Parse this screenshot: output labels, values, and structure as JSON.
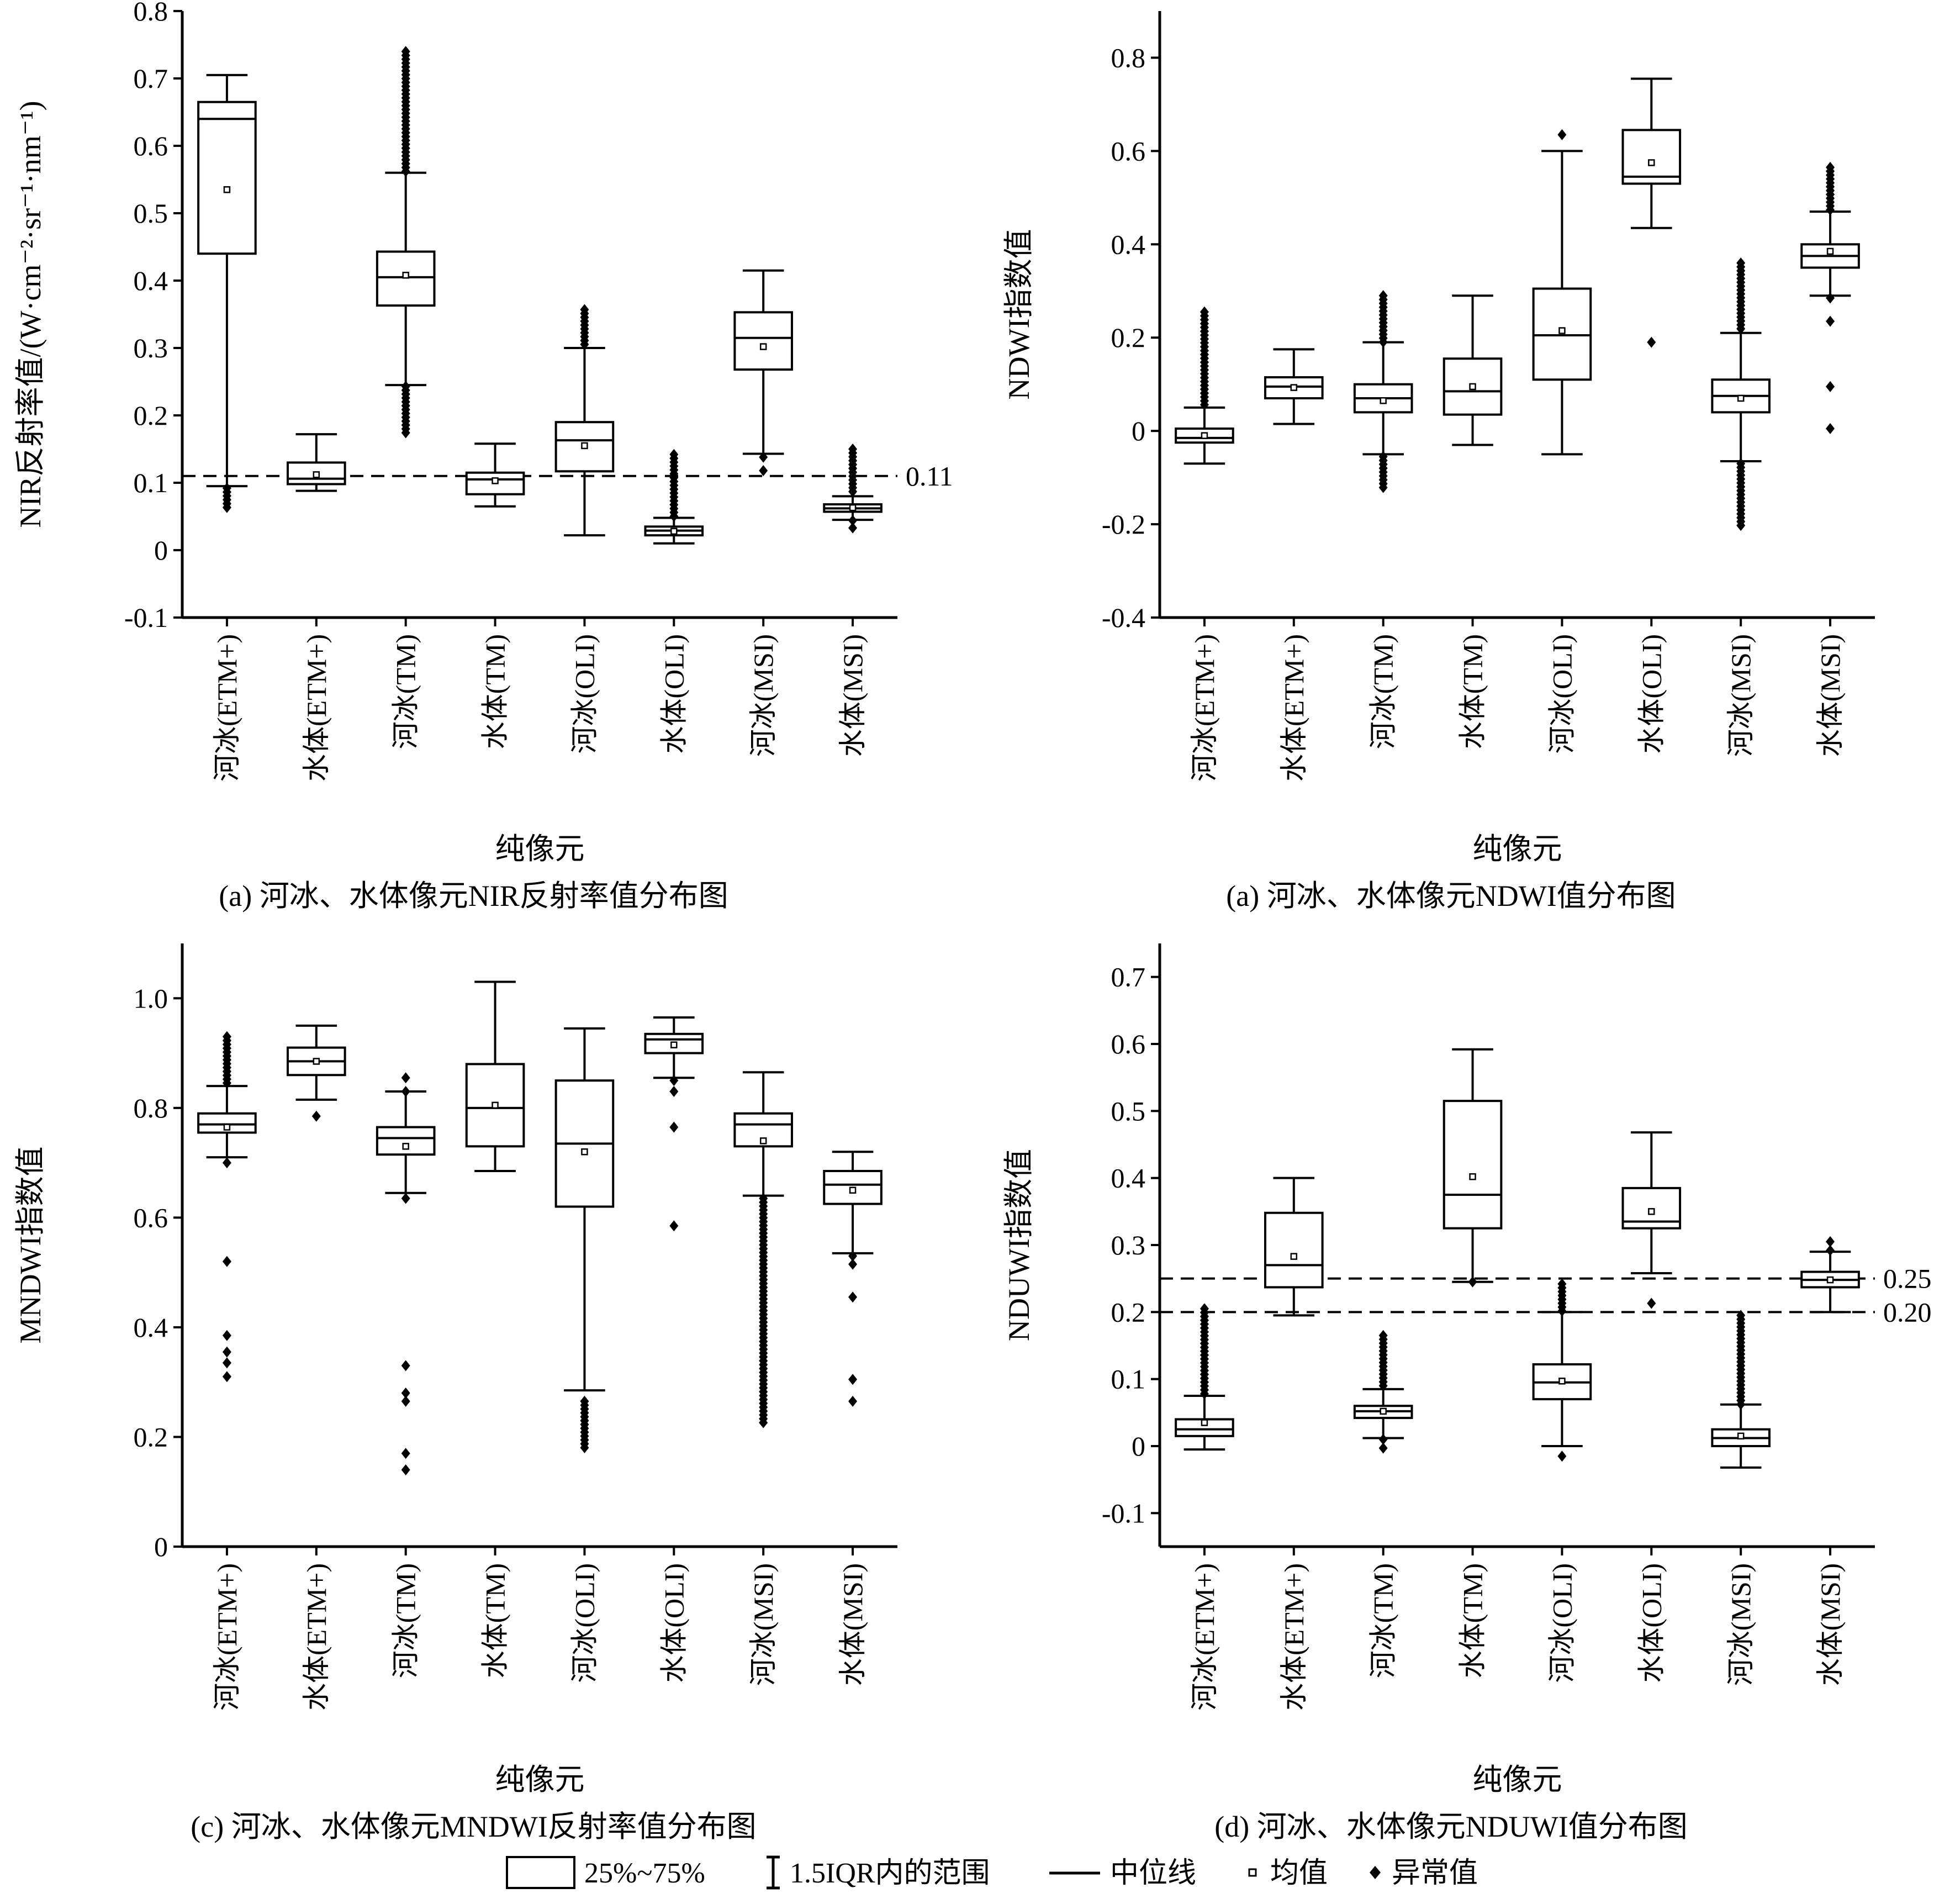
{
  "legend": {
    "box_label": "25%~75%",
    "whisker_label": "1.5IQR内的范围",
    "median_label": "中位线",
    "mean_label": "均值",
    "outlier_label": "异常值"
  },
  "chart_data": [
    {
      "type": "box",
      "caption": "(a) 河冰、水体像元NIR反射率值分布图",
      "xlabel": "纯像元",
      "ylabel": "NIR反射率值/(W·cm⁻²·sr⁻¹·nm⁻¹)",
      "ylim": [
        -0.1,
        0.8
      ],
      "yticks": [
        "-0.1",
        "0",
        "0.1",
        "0.2",
        "0.3",
        "0.4",
        "0.5",
        "0.6",
        "0.7",
        "0.8"
      ],
      "ref_lines": [
        {
          "value": 0.11,
          "label": "0.11"
        }
      ],
      "categories": [
        "河冰(ETM+)",
        "水体(ETM+)",
        "河冰(TM)",
        "水体(TM)",
        "河冰(OLI)",
        "水体(OLI)",
        "河冰(MSI)",
        "水体(MSI)"
      ],
      "boxes": [
        {
          "q1": 0.44,
          "median": 0.64,
          "q3": 0.665,
          "mean": 0.535,
          "wlow": 0.095,
          "whigh": 0.705,
          "outliers_low": [
            0.063,
            0.092
          ],
          "outliers_high": []
        },
        {
          "q1": 0.098,
          "median": 0.106,
          "q3": 0.13,
          "mean": 0.112,
          "wlow": 0.088,
          "whigh": 0.172,
          "outliers_low": [],
          "outliers_high": []
        },
        {
          "q1": 0.363,
          "median": 0.405,
          "q3": 0.443,
          "mean": 0.408,
          "wlow": 0.245,
          "whigh": 0.56,
          "outliers_low": [
            0.172,
            0.243
          ],
          "outliers_high": [
            0.562,
            0.74
          ]
        },
        {
          "q1": 0.083,
          "median": 0.105,
          "q3": 0.115,
          "mean": 0.103,
          "wlow": 0.065,
          "whigh": 0.158,
          "outliers_low": [],
          "outliers_high": []
        },
        {
          "q1": 0.117,
          "median": 0.163,
          "q3": 0.19,
          "mean": 0.155,
          "wlow": 0.022,
          "whigh": 0.3,
          "outliers_low": [],
          "outliers_high": [
            0.3,
            0.357
          ]
        },
        {
          "q1": 0.022,
          "median": 0.029,
          "q3": 0.035,
          "mean": 0.028,
          "wlow": 0.01,
          "whigh": 0.048,
          "outliers_low": [],
          "outliers_high": [
            0.049,
            0.142
          ]
        },
        {
          "q1": 0.268,
          "median": 0.315,
          "q3": 0.353,
          "mean": 0.302,
          "wlow": 0.143,
          "whigh": 0.415,
          "outliers_low": [
            0.118,
            0.138
          ],
          "outliers_high": []
        },
        {
          "q1": 0.057,
          "median": 0.062,
          "q3": 0.068,
          "mean": 0.063,
          "wlow": 0.045,
          "whigh": 0.08,
          "outliers_low": [
            0.033,
            0.044
          ],
          "outliers_high": [
            0.082,
            0.15
          ]
        }
      ]
    },
    {
      "type": "box",
      "caption": "(a) 河冰、水体像元NDWI值分布图",
      "xlabel": "纯像元",
      "ylabel": "NDWI指数值",
      "ylim": [
        -0.4,
        0.9
      ],
      "yticks": [
        "-0.4",
        "-0.2",
        "0",
        "0.2",
        "0.4",
        "0.6",
        "0.8"
      ],
      "ref_lines": [],
      "categories": [
        "河冰(ETM+)",
        "水体(ETM+)",
        "河冰(TM)",
        "水体(TM)",
        "河冰(OLI)",
        "水体(OLI)",
        "河冰(MSI)",
        "水体(MSI)"
      ],
      "boxes": [
        {
          "q1": -0.025,
          "median": -0.015,
          "q3": 0.005,
          "mean": -0.01,
          "wlow": -0.07,
          "whigh": 0.05,
          "outliers_low": [],
          "outliers_high": [
            0.05,
            0.255
          ]
        },
        {
          "q1": 0.07,
          "median": 0.095,
          "q3": 0.115,
          "mean": 0.093,
          "wlow": 0.015,
          "whigh": 0.175,
          "outliers_low": [],
          "outliers_high": []
        },
        {
          "q1": 0.04,
          "median": 0.07,
          "q3": 0.1,
          "mean": 0.065,
          "wlow": -0.05,
          "whigh": 0.19,
          "outliers_low": [
            -0.125,
            -0.055
          ],
          "outliers_high": [
            0.19,
            0.29
          ]
        },
        {
          "q1": 0.035,
          "median": 0.085,
          "q3": 0.155,
          "mean": 0.095,
          "wlow": -0.03,
          "whigh": 0.29,
          "outliers_low": [],
          "outliers_high": []
        },
        {
          "q1": 0.11,
          "median": 0.205,
          "q3": 0.305,
          "mean": 0.215,
          "wlow": -0.05,
          "whigh": 0.6,
          "outliers_low": [],
          "outliers_high": [
            0.635
          ]
        },
        {
          "q1": 0.53,
          "median": 0.545,
          "q3": 0.645,
          "mean": 0.575,
          "wlow": 0.435,
          "whigh": 0.755,
          "outliers_low": [
            0.19
          ],
          "outliers_high": []
        },
        {
          "q1": 0.04,
          "median": 0.075,
          "q3": 0.11,
          "mean": 0.07,
          "wlow": -0.065,
          "whigh": 0.21,
          "outliers_low": [
            -0.205,
            -0.07
          ],
          "outliers_high": [
            0.212,
            0.36
          ]
        },
        {
          "q1": 0.35,
          "median": 0.375,
          "q3": 0.4,
          "mean": 0.385,
          "wlow": 0.29,
          "whigh": 0.47,
          "outliers_low": [
            0.005,
            0.095,
            0.235,
            0.285
          ],
          "outliers_high": [
            0.47,
            0.565
          ]
        }
      ]
    },
    {
      "type": "box",
      "caption": "(c) 河冰、水体像元MNDWI反射率值分布图",
      "xlabel": "纯像元",
      "ylabel": "MNDWI指数值",
      "ylim": [
        0,
        1.1
      ],
      "yticks": [
        "0",
        "0.2",
        "0.4",
        "0.6",
        "0.8",
        "1.0"
      ],
      "ref_lines": [],
      "categories": [
        "河冰(ETM+)",
        "水体(ETM+)",
        "河冰(TM)",
        "水体(TM)",
        "河冰(OLI)",
        "水体(OLI)",
        "河冰(MSI)",
        "水体(MSI)"
      ],
      "boxes": [
        {
          "q1": 0.755,
          "median": 0.77,
          "q3": 0.79,
          "mean": 0.765,
          "wlow": 0.71,
          "whigh": 0.84,
          "outliers_low": [
            0.31,
            0.335,
            0.355,
            0.385,
            0.52,
            0.7
          ],
          "outliers_high": [
            0.84,
            0.93
          ]
        },
        {
          "q1": 0.86,
          "median": 0.885,
          "q3": 0.91,
          "mean": 0.885,
          "wlow": 0.815,
          "whigh": 0.95,
          "outliers_low": [
            0.785
          ],
          "outliers_high": []
        },
        {
          "q1": 0.715,
          "median": 0.745,
          "q3": 0.765,
          "mean": 0.73,
          "wlow": 0.645,
          "whigh": 0.83,
          "outliers_low": [
            0.14,
            0.17,
            0.265,
            0.28,
            0.33,
            0.635
          ],
          "outliers_high": [
            0.83,
            0.855
          ]
        },
        {
          "q1": 0.73,
          "median": 0.8,
          "q3": 0.88,
          "mean": 0.805,
          "wlow": 0.685,
          "whigh": 1.03,
          "outliers_low": [],
          "outliers_high": []
        },
        {
          "q1": 0.62,
          "median": 0.735,
          "q3": 0.85,
          "mean": 0.72,
          "wlow": 0.285,
          "whigh": 0.945,
          "outliers_low": [
            0.18,
            0.265
          ],
          "outliers_high": []
        },
        {
          "q1": 0.9,
          "median": 0.925,
          "q3": 0.935,
          "mean": 0.915,
          "wlow": 0.855,
          "whigh": 0.965,
          "outliers_low": [
            0.585,
            0.765,
            0.83,
            0.85
          ],
          "outliers_high": []
        },
        {
          "q1": 0.73,
          "median": 0.77,
          "q3": 0.79,
          "mean": 0.74,
          "wlow": 0.64,
          "whigh": 0.865,
          "outliers_low": [
            0.225,
            0.635
          ],
          "outliers_high": []
        },
        {
          "q1": 0.625,
          "median": 0.66,
          "q3": 0.685,
          "mean": 0.65,
          "wlow": 0.535,
          "whigh": 0.72,
          "outliers_low": [
            0.265,
            0.305,
            0.455,
            0.515,
            0.53
          ],
          "outliers_high": []
        }
      ]
    },
    {
      "type": "box",
      "caption": "(d) 河冰、水体像元NDUWI值分布图",
      "xlabel": "纯像元",
      "ylabel": "NDUWI指数值",
      "ylim": [
        -0.15,
        0.75
      ],
      "yticks": [
        "-0.1",
        "0",
        "0.1",
        "0.2",
        "0.3",
        "0.4",
        "0.5",
        "0.6",
        "0.7"
      ],
      "ref_lines": [
        {
          "value": 0.25,
          "label": "0.25"
        },
        {
          "value": 0.2,
          "label": "0.20"
        }
      ],
      "categories": [
        "河冰(ETM+)",
        "水体(ETM+)",
        "河冰(TM)",
        "水体(TM)",
        "河冰(OLI)",
        "水体(OLI)",
        "河冰(MSI)",
        "水体(MSI)"
      ],
      "boxes": [
        {
          "q1": 0.015,
          "median": 0.025,
          "q3": 0.04,
          "mean": 0.035,
          "wlow": -0.005,
          "whigh": 0.075,
          "outliers_low": [],
          "outliers_high": [
            0.075,
            0.205
          ]
        },
        {
          "q1": 0.237,
          "median": 0.27,
          "q3": 0.348,
          "mean": 0.283,
          "wlow": 0.195,
          "whigh": 0.4,
          "outliers_low": [],
          "outliers_high": []
        },
        {
          "q1": 0.042,
          "median": 0.052,
          "q3": 0.06,
          "mean": 0.052,
          "wlow": 0.012,
          "whigh": 0.085,
          "outliers_low": [
            -0.003,
            0.01
          ],
          "outliers_high": [
            0.087,
            0.165
          ]
        },
        {
          "q1": 0.325,
          "median": 0.375,
          "q3": 0.515,
          "mean": 0.402,
          "wlow": 0.245,
          "whigh": 0.592,
          "outliers_low": [
            0.245
          ],
          "outliers_high": []
        },
        {
          "q1": 0.07,
          "median": 0.095,
          "q3": 0.122,
          "mean": 0.097,
          "wlow": 0.0,
          "whigh": 0.2,
          "outliers_low": [
            -0.015
          ],
          "outliers_high": [
            0.2,
            0.242
          ]
        },
        {
          "q1": 0.325,
          "median": 0.335,
          "q3": 0.385,
          "mean": 0.35,
          "wlow": 0.258,
          "whigh": 0.468,
          "outliers_low": [
            0.213
          ],
          "outliers_high": []
        },
        {
          "q1": 0.0,
          "median": 0.012,
          "q3": 0.025,
          "mean": 0.015,
          "wlow": -0.032,
          "whigh": 0.062,
          "outliers_low": [],
          "outliers_high": [
            0.062,
            0.195
          ]
        },
        {
          "q1": 0.237,
          "median": 0.248,
          "q3": 0.26,
          "mean": 0.248,
          "wlow": 0.2,
          "whigh": 0.29,
          "outliers_low": [],
          "outliers_high": [
            0.292,
            0.305
          ]
        }
      ]
    }
  ]
}
